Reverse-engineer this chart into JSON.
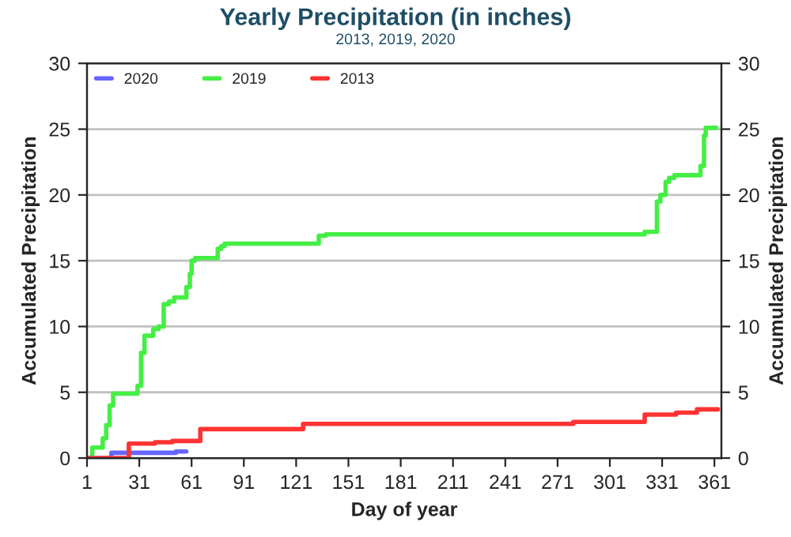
{
  "chart_data": {
    "type": "step",
    "title": "Yearly Precipitation (in inches)",
    "subtitle": "2013, 2019, 2020",
    "xlabel": "Day of year",
    "ylabel": "Accumulated Precipitation",
    "y2label": "Accumulated Precipitation",
    "xlim": [
      1,
      365
    ],
    "xticks": [
      1,
      31,
      61,
      91,
      121,
      151,
      181,
      211,
      241,
      271,
      301,
      331,
      361
    ],
    "ylim": [
      0,
      30
    ],
    "yticks": [
      0,
      5,
      10,
      15,
      20,
      25,
      30
    ],
    "y2lim": [
      0,
      30
    ],
    "y2ticks": [
      0,
      5,
      10,
      15,
      20,
      25,
      30
    ],
    "grid": "y",
    "legend": "top left",
    "line_style": "solid",
    "marker": "none",
    "series": [
      {
        "name": "2020",
        "color": "#6666ff",
        "x": [
          1,
          15,
          52,
          58
        ],
        "values": [
          0,
          0.4,
          0.5,
          0.5
        ]
      },
      {
        "name": "2019",
        "color": "#44ee44",
        "x": [
          2,
          4,
          10,
          12,
          14,
          16,
          30,
          32,
          34,
          39,
          42,
          45,
          48,
          51,
          58,
          60,
          61,
          63,
          76,
          78,
          80,
          128,
          134,
          138,
          144,
          321,
          328,
          330,
          333,
          335,
          338,
          341,
          353,
          355,
          356,
          358,
          362
        ],
        "values": [
          0,
          0.8,
          1.5,
          2.5,
          4,
          4.9,
          5.5,
          8,
          9.3,
          9.8,
          10,
          11.7,
          11.9,
          12.2,
          13,
          14,
          15,
          15.2,
          15.9,
          16.1,
          16.3,
          16.3,
          16.9,
          17,
          17,
          17.2,
          19.5,
          20,
          21,
          21.3,
          21.5,
          21.5,
          22.2,
          24.5,
          25.1,
          25.1,
          25.1
        ]
      },
      {
        "name": "2013",
        "color": "#ff3333",
        "x": [
          1,
          21,
          25,
          40,
          50,
          64,
          66,
          123,
          125,
          280,
          321,
          339,
          351,
          363
        ],
        "values": [
          0,
          0,
          1.1,
          1.2,
          1.3,
          1.3,
          2.2,
          2.2,
          2.6,
          2.75,
          3.3,
          3.45,
          3.7,
          3.7
        ]
      }
    ]
  }
}
